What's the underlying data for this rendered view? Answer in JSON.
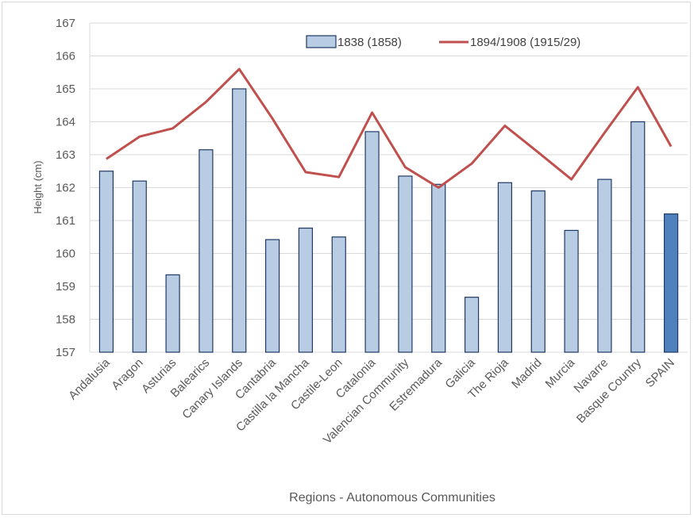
{
  "chart_data": {
    "type": "bar",
    "title": "",
    "xlabel": "Regions - Autonomous Communities",
    "ylabel": "Height (cm)",
    "ylim": [
      157,
      167
    ],
    "yticks": [
      157,
      158,
      159,
      160,
      161,
      162,
      163,
      164,
      165,
      166,
      167
    ],
    "grid": true,
    "legend_position": "top-right",
    "categories": [
      "Andalusia",
      "Aragon",
      "Asturias",
      "Balearics",
      "Canary Islands",
      "Cantabria",
      "Castilla la Mancha",
      "Castile-Leon",
      "Catalonia",
      "Valencian Community",
      "Estremadura",
      "Galicia",
      "The Rioja",
      "Madrid",
      "Murcia",
      "Navarre",
      "Basque Country",
      "SPAIN"
    ],
    "series": [
      {
        "name": "1838 (1858)",
        "type": "bar",
        "color": "#b8cce4",
        "highlight_color": "#4f81bd",
        "edge_color": "#1f3864",
        "values": [
          162.5,
          162.2,
          159.35,
          163.15,
          165.0,
          160.42,
          160.77,
          160.5,
          163.7,
          162.35,
          162.1,
          158.67,
          162.15,
          161.9,
          160.7,
          162.25,
          164.0,
          161.2
        ]
      },
      {
        "name": "1894/1908 (1915/29)",
        "type": "line",
        "color": "#c0504d",
        "values": [
          162.87,
          163.55,
          163.8,
          164.6,
          165.6,
          164.1,
          162.47,
          162.32,
          164.28,
          162.62,
          162.0,
          162.73,
          163.88,
          163.07,
          162.25,
          163.67,
          165.05,
          163.25
        ]
      }
    ]
  }
}
